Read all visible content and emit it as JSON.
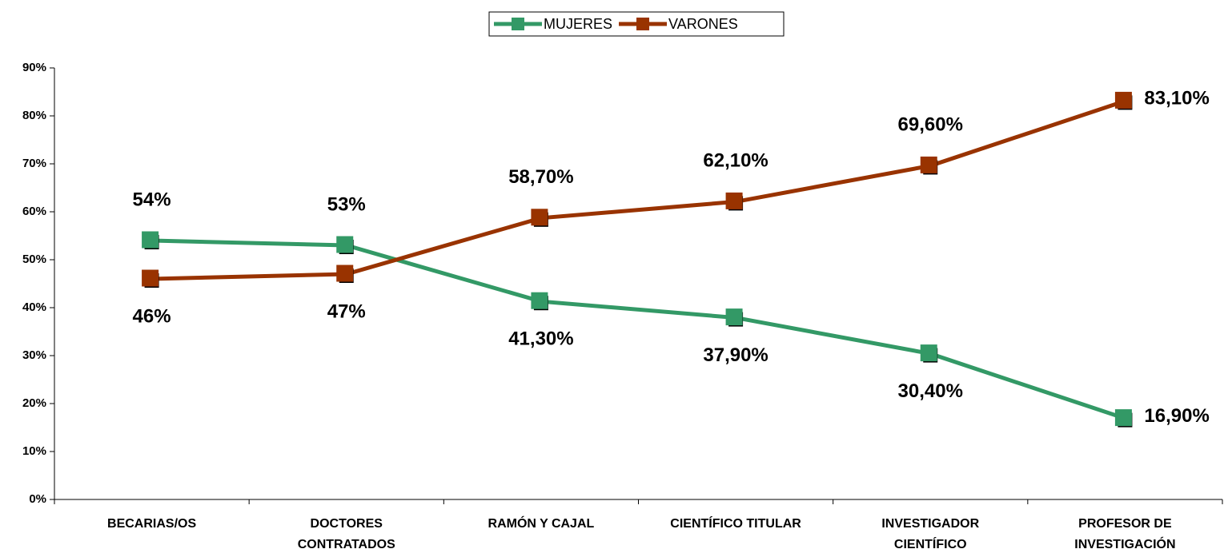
{
  "chart_data": {
    "type": "line",
    "categories": [
      "BECARIAS/OS",
      "DOCTORES CONTRATADOS",
      "RAMÓN Y CAJAL",
      "CIENTÍFICO TITULAR",
      "INVESTIGADOR CIENTÍFICO",
      "PROFESOR DE INVESTIGACIÓN"
    ],
    "series": [
      {
        "name": "MUJERES",
        "color": "#339966",
        "values": [
          54,
          53,
          41.3,
          37.9,
          30.4,
          16.9
        ],
        "value_labels": [
          "54%",
          "53%",
          "41,30%",
          "37,90%",
          "30,40%",
          "16,90%"
        ]
      },
      {
        "name": "VARONES",
        "color": "#993300",
        "values": [
          46,
          47,
          58.7,
          62.1,
          69.6,
          83.1
        ],
        "value_labels": [
          "46%",
          "47%",
          "58,70%",
          "62,10%",
          "69,60%",
          "83,10%"
        ]
      }
    ],
    "ylim": [
      0,
      90
    ],
    "yticks": [
      {
        "value": 0,
        "label": "0%"
      },
      {
        "value": 10,
        "label": "10%"
      },
      {
        "value": 20,
        "label": "20%"
      },
      {
        "value": 30,
        "label": "30%"
      },
      {
        "value": 40,
        "label": "40%"
      },
      {
        "value": 50,
        "label": "50%"
      },
      {
        "value": 60,
        "label": "60%"
      },
      {
        "value": 70,
        "label": "70%"
      },
      {
        "value": 80,
        "label": "80%"
      },
      {
        "value": 90,
        "label": "90%"
      }
    ],
    "grid": false,
    "legend": "top"
  }
}
